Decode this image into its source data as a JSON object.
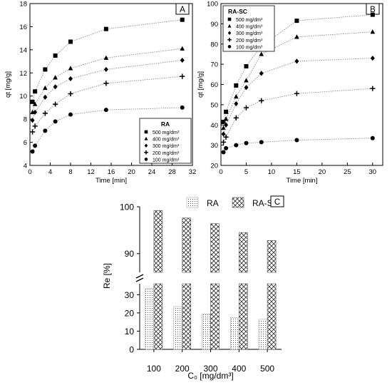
{
  "chart_data": [
    {
      "panel": "A",
      "type": "line",
      "xlabel": "Time [min]",
      "ylabel": "qt [mg/g]",
      "xlim": [
        0,
        32
      ],
      "ylim": [
        4,
        18
      ],
      "xticks": [
        0,
        4,
        8,
        12,
        16,
        20,
        24,
        28,
        32
      ],
      "yticks": [
        4,
        6,
        8,
        10,
        12,
        14,
        16,
        18
      ],
      "legend_title": "RA",
      "legend_position": "bottom-right",
      "x": [
        0.5,
        1,
        3,
        5,
        8,
        15,
        30
      ],
      "series": [
        {
          "name": "500 mg/dm³",
          "marker": "square",
          "values": [
            9.5,
            10.4,
            12.3,
            13.5,
            14.7,
            15.8,
            16.6
          ]
        },
        {
          "name": "400 mg/dm³",
          "marker": "triangle",
          "values": [
            8.6,
            9.3,
            10.7,
            11.6,
            12.4,
            13.3,
            14.1
          ]
        },
        {
          "name": "300 mg/dm³",
          "marker": "diamond",
          "values": [
            7.9,
            8.6,
            9.9,
            10.8,
            11.5,
            12.3,
            13.1
          ]
        },
        {
          "name": "200 mg/dm³",
          "marker": "plus",
          "values": [
            6.9,
            7.4,
            8.5,
            9.3,
            10.2,
            11.1,
            11.7
          ]
        },
        {
          "name": "100 mg/dm³",
          "marker": "circle",
          "values": [
            5.2,
            5.7,
            7.0,
            7.8,
            8.4,
            8.8,
            9.0
          ]
        }
      ]
    },
    {
      "panel": "B",
      "type": "line",
      "xlabel": "Time [min]",
      "ylabel": "qt [mg/g]",
      "xlim": [
        0,
        32
      ],
      "ylim": [
        20,
        100
      ],
      "xticks": [
        0,
        5,
        10,
        15,
        20,
        25,
        30
      ],
      "yticks": [
        20,
        30,
        40,
        50,
        60,
        70,
        80,
        90,
        100
      ],
      "legend_title": "RA-SC",
      "legend_position": "top-left",
      "x": [
        0.5,
        1,
        3,
        5,
        8,
        15,
        30
      ],
      "series": [
        {
          "name": "500 mg/dm³",
          "marker": "square",
          "values": [
            41.5,
            46.5,
            59.5,
            69,
            79,
            91.5,
            94.5
          ]
        },
        {
          "name": "400 mg/dm³",
          "marker": "triangle",
          "values": [
            38.5,
            43,
            54,
            62,
            75,
            83.5,
            86
          ]
        },
        {
          "name": "300 mg/dm³",
          "marker": "diamond",
          "values": [
            35.5,
            40,
            50.5,
            58.5,
            65.5,
            71.5,
            73
          ]
        },
        {
          "name": "200 mg/dm³",
          "marker": "plus",
          "values": [
            31.5,
            34,
            43.5,
            48.5,
            52,
            55.5,
            58
          ]
        },
        {
          "name": "100 mg/dm³",
          "marker": "circle",
          "values": [
            26.5,
            28.5,
            30,
            31,
            31.5,
            32.5,
            33.5
          ]
        }
      ]
    },
    {
      "panel": "C",
      "type": "bar",
      "xlabel": "C₀ [mg/dm³]",
      "ylabel": "Re [%]",
      "categories": [
        "100",
        "200",
        "300",
        "400",
        "500"
      ],
      "broken_axis": {
        "lower": [
          0,
          36
        ],
        "upper": [
          86,
          100
        ]
      },
      "yticks_lower": [
        0,
        10,
        20,
        30
      ],
      "yticks_upper": [
        90,
        100
      ],
      "legend_position": "top",
      "series": [
        {
          "name": "RA",
          "pattern": "dots",
          "values": [
            33.3,
            23.5,
            19.5,
            17.5,
            16.5
          ]
        },
        {
          "name": "RA-SC",
          "pattern": "crosshatch",
          "values": [
            99.2,
            97.6,
            96.4,
            94.5,
            92.8
          ]
        }
      ]
    }
  ]
}
